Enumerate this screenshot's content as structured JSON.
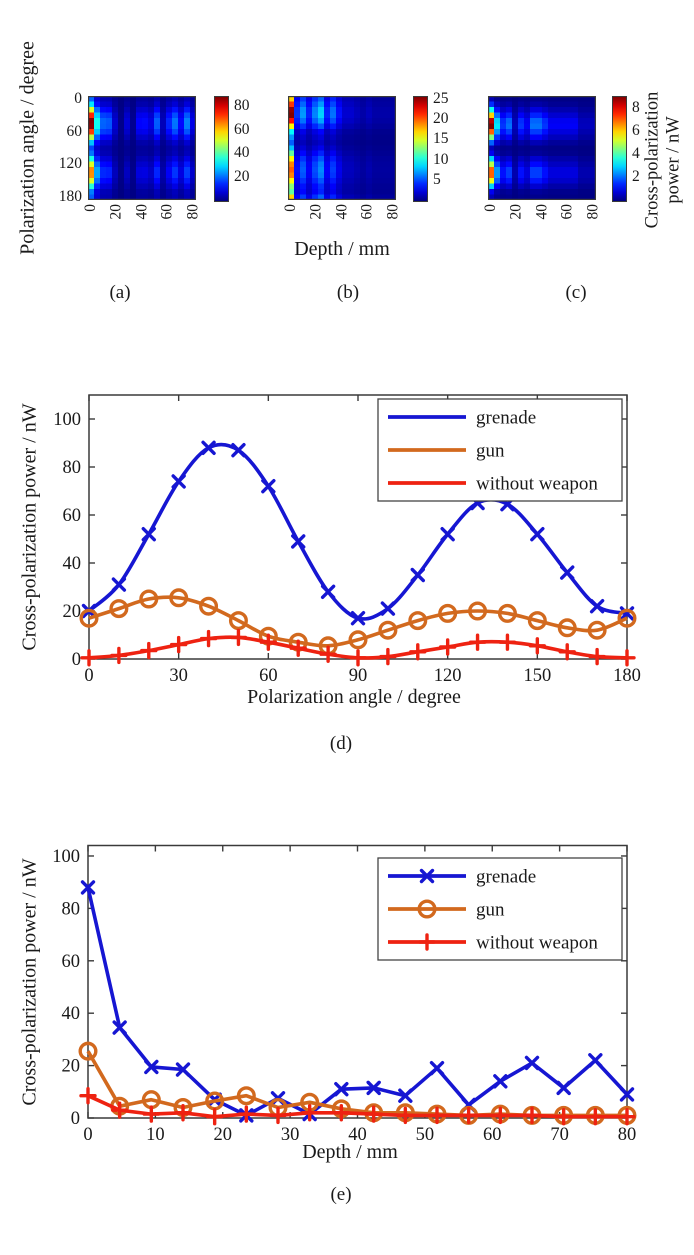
{
  "labels": {
    "angle_axis": "Polarization angle / degree",
    "depth_axis": "Depth / mm",
    "power_axis": "Cross-polarization power / nW",
    "power_axis_line1": "Cross-polarization",
    "power_axis_line2": "power / nW"
  },
  "colors": {
    "grenade": "#1616d2",
    "gun": "#d2691e",
    "without_weapon": "#ee2211",
    "axis": "#3a3a3a"
  },
  "chart_data": [
    {
      "id": "heatmap_a",
      "type": "heatmap",
      "caption": "(a)",
      "colormap": "jet",
      "x_axis": "Depth / mm",
      "y_axis": "Polarization angle / degree",
      "value_axis": "Cross-polarization power / nW",
      "x_ticks": [
        0,
        20,
        40,
        60,
        80
      ],
      "y_ticks": [
        0,
        60,
        120,
        180
      ],
      "x_range": [
        0,
        80
      ],
      "y_range": [
        0,
        180
      ],
      "vmax": 88,
      "colorbar_ticks": [
        20,
        40,
        60,
        80
      ],
      "model": "outer_product: value(angle i, depth j) = angle_profile[i] * depth_profile[j] / depth_profile[0]",
      "angle_profile": [
        20,
        31,
        52,
        74,
        88,
        87,
        72,
        49,
        28,
        17,
        21,
        35,
        52,
        65,
        64.5,
        52,
        36,
        22,
        19
      ],
      "depth_profile": [
        88,
        34.5,
        19.5,
        18.5,
        7,
        1,
        7.5,
        1.5,
        11,
        11.5,
        8.5,
        19,
        5,
        14,
        21,
        11.5,
        22,
        9
      ]
    },
    {
      "id": "heatmap_b",
      "type": "heatmap",
      "caption": "(b)",
      "colormap": "jet",
      "x_axis": "Depth / mm",
      "y_axis": "Polarization angle / degree",
      "value_axis": "Cross-polarization power / nW",
      "x_ticks": [
        0,
        20,
        40,
        60,
        80
      ],
      "y_ticks": [
        0,
        60,
        120,
        180
      ],
      "x_range": [
        0,
        80
      ],
      "y_range": [
        0,
        180
      ],
      "vmax": 25.5,
      "colorbar_ticks": [
        5,
        10,
        15,
        20,
        25
      ],
      "model": "outer_product: value(angle i, depth j) = angle_profile[i] * depth_profile[j] / depth_profile[0]",
      "angle_profile": [
        17,
        21,
        25,
        25.5,
        22,
        16,
        9.5,
        7,
        5.5,
        8,
        12,
        16,
        19,
        20,
        19,
        16,
        13,
        12,
        17
      ],
      "depth_profile": [
        25.5,
        4.5,
        7,
        4,
        6.5,
        8.5,
        4,
        6,
        3.5,
        2,
        2,
        1.5,
        1,
        1.5,
        1,
        1,
        1,
        1
      ]
    },
    {
      "id": "heatmap_c",
      "type": "heatmap",
      "caption": "(c)",
      "colormap": "jet",
      "x_axis": "Depth / mm",
      "y_axis": "Polarization angle / degree",
      "value_axis": "Cross-polarization power / nW",
      "x_ticks": [
        0,
        20,
        40,
        60,
        80
      ],
      "y_ticks": [
        0,
        60,
        120,
        180
      ],
      "x_range": [
        0,
        80
      ],
      "y_range": [
        0,
        180
      ],
      "vmax": 9,
      "colorbar_ticks": [
        2,
        4,
        6,
        8
      ],
      "model": "outer_product: value(angle i, depth j) = angle_profile[i] * depth_profile[j] / depth_profile[0]",
      "angle_profile": [
        0.5,
        1.5,
        3.5,
        6,
        8.5,
        9,
        7,
        4.5,
        2,
        0.5,
        1,
        3,
        5,
        7,
        7,
        5.5,
        3,
        1,
        0.5
      ],
      "depth_profile": [
        8.5,
        3,
        1.5,
        2,
        0.5,
        1.5,
        1,
        2,
        2,
        1.5,
        1,
        1,
        1,
        1,
        1,
        0.5,
        0.5,
        0.5
      ]
    },
    {
      "id": "chart_d",
      "type": "line",
      "caption": "(d)",
      "xlabel": "Polarization angle / degree",
      "ylabel": "Cross-polarization power / nW",
      "x": [
        0,
        10,
        20,
        30,
        40,
        50,
        60,
        70,
        80,
        90,
        100,
        110,
        120,
        130,
        140,
        150,
        160,
        170,
        180
      ],
      "xlim": [
        0,
        180
      ],
      "ylim": [
        0,
        110
      ],
      "xticks": [
        0,
        30,
        60,
        90,
        120,
        150,
        180
      ],
      "yticks": [
        0,
        20,
        40,
        60,
        80,
        100
      ],
      "grid": false,
      "smooth": true,
      "legend_position": "top-right",
      "legend_markers": false,
      "series": [
        {
          "name": "grenade",
          "color": "#1616d2",
          "marker": "x",
          "values": [
            20,
            31,
            52,
            74,
            88,
            87,
            72,
            49,
            28,
            17,
            21,
            35,
            52,
            65,
            64.5,
            52,
            36,
            22,
            19
          ]
        },
        {
          "name": "gun",
          "color": "#d2691e",
          "marker": "o",
          "values": [
            17,
            21,
            25,
            25.5,
            22,
            16,
            9.5,
            7,
            5.5,
            8,
            12,
            16,
            19,
            20,
            19,
            16,
            13,
            12,
            17
          ]
        },
        {
          "name": "without weapon",
          "color": "#ee2211",
          "marker": "+",
          "values": [
            0.5,
            1.5,
            3.5,
            6,
            8.5,
            9,
            7,
            4.5,
            2,
            0.5,
            1,
            3,
            5,
            7,
            7,
            5.5,
            3,
            1,
            0.5
          ]
        }
      ]
    },
    {
      "id": "chart_e",
      "type": "line",
      "caption": "(e)",
      "xlabel": "Depth / mm",
      "ylabel": "Cross-polarization power / nW",
      "x": [
        0,
        4.7,
        9.4,
        14.1,
        18.8,
        23.5,
        28.2,
        32.9,
        37.6,
        42.4,
        47.1,
        51.8,
        56.5,
        61.2,
        65.9,
        70.6,
        75.3,
        80
      ],
      "xlim": [
        0,
        80
      ],
      "ylim": [
        0,
        104
      ],
      "xticks": [
        0,
        10,
        20,
        30,
        40,
        50,
        60,
        70,
        80
      ],
      "yticks": [
        0,
        20,
        40,
        60,
        80,
        100
      ],
      "grid": false,
      "smooth": false,
      "legend_position": "top-right",
      "legend_markers": true,
      "series": [
        {
          "name": "grenade",
          "color": "#1616d2",
          "marker": "x",
          "values": [
            88,
            34.5,
            19.5,
            18.5,
            7,
            1,
            7.5,
            1.5,
            11,
            11.5,
            8.5,
            19,
            5,
            14,
            21,
            11.5,
            22,
            9
          ]
        },
        {
          "name": "gun",
          "color": "#d2691e",
          "marker": "o",
          "values": [
            25.5,
            4.5,
            7,
            4,
            6.5,
            8.5,
            4,
            6,
            3.5,
            2,
            2,
            1.5,
            1,
            1.5,
            1,
            1,
            1,
            1
          ]
        },
        {
          "name": "without weapon",
          "color": "#ee2211",
          "marker": "+",
          "values": [
            8.5,
            3,
            1.5,
            2,
            0.5,
            1.5,
            1,
            2,
            2,
            1.5,
            1,
            1,
            1,
            1,
            1,
            0.5,
            0.5,
            0.5
          ]
        }
      ]
    }
  ]
}
